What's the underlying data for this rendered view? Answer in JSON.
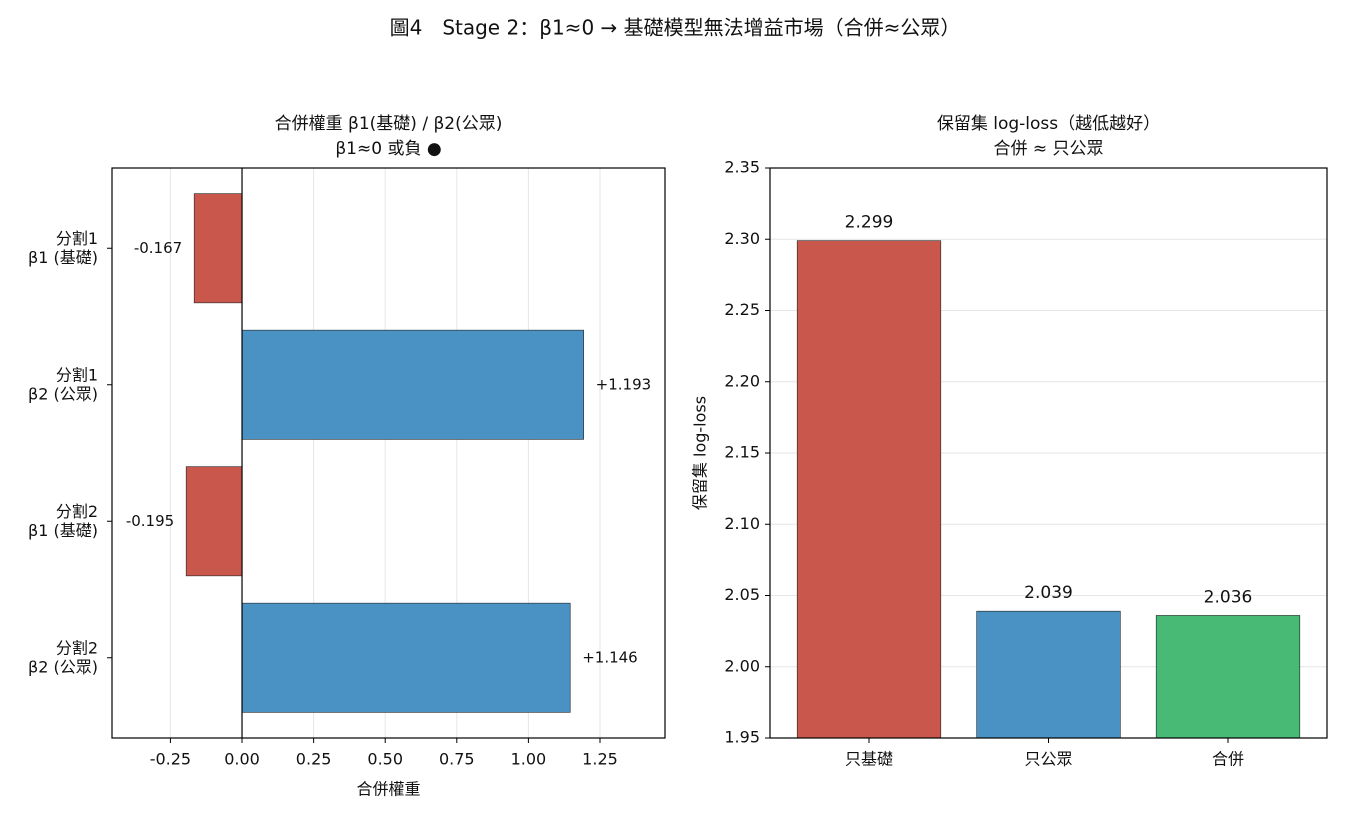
{
  "title": "圖4　Stage 2：β1≈0 → 基礎模型無法增益市場（合併≈公眾）",
  "chart_data": [
    {
      "type": "barh",
      "title": "合併權重 β1(基礎) / β2(公眾)",
      "subtitle": "β1≈0 或負 ●",
      "xlabel": "合併權重",
      "categories": [
        "分割1\nβ1 (基礎)",
        "分割1\nβ2 (公眾)",
        "分割2\nβ1 (基礎)",
        "分割2\nβ2 (公眾)"
      ],
      "values": [
        -0.167,
        1.193,
        -0.195,
        1.146
      ],
      "value_labels": [
        "-0.167",
        "+1.193",
        "-0.195",
        "+1.146"
      ],
      "colors": [
        "#c9574c",
        "#4a92c4",
        "#c9574c",
        "#4a92c4"
      ],
      "xlim": [
        -0.454,
        1.477
      ],
      "xticks": [
        -0.25,
        {
          "value": 0,
          "label": "0.00"
        },
        0.25,
        {
          "value": 0.5,
          "label": "0.50"
        },
        0.75,
        {
          "value": 1,
          "label": "1.00"
        },
        1.25
      ],
      "grid": true
    },
    {
      "type": "bar",
      "title": "保留集 log-loss（越低越好）",
      "subtitle": "合併 ≈ 只公眾",
      "ylabel": "保留集 log-loss",
      "categories": [
        "只基礎",
        "只公眾",
        "合併"
      ],
      "values": [
        2.299,
        2.039,
        2.036
      ],
      "colors": [
        "#c9574c",
        "#4a92c4",
        "#48ba76"
      ],
      "ylim": [
        1.95,
        2.35
      ],
      "yticks": [
        1.95,
        {
          "value": 2,
          "label": "2.00"
        },
        2.05,
        {
          "value": 2.1,
          "label": "2.10"
        },
        2.15,
        {
          "value": 2.2,
          "label": "2.20"
        },
        2.25,
        {
          "value": 2.3,
          "label": "2.30"
        },
        2.35
      ],
      "grid": true
    }
  ]
}
